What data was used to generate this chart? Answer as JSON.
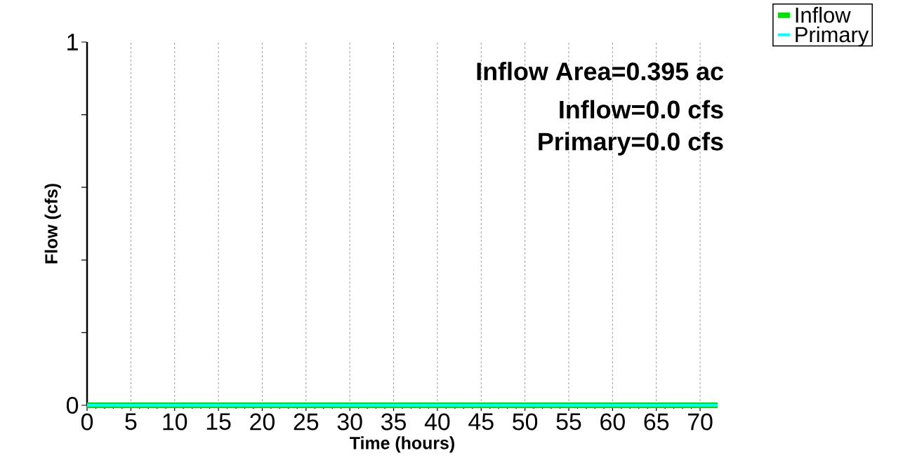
{
  "chart_data": {
    "type": "line",
    "xlabel": "Time  (hours)",
    "ylabel": "Flow  (cfs)",
    "x": [
      0,
      72
    ],
    "series": [
      {
        "name": "Inflow",
        "color": "#00e000",
        "values": [
          0,
          0
        ]
      },
      {
        "name": "Primary",
        "color": "#00ffff",
        "values": [
          0,
          0
        ]
      }
    ],
    "xlim": [
      0,
      72
    ],
    "xticks": [
      0,
      5,
      10,
      15,
      20,
      25,
      30,
      35,
      40,
      45,
      50,
      55,
      60,
      65,
      70
    ],
    "ylim": [
      0,
      1
    ],
    "yticks": [
      0,
      {
        "value": 0.2,
        "label": null
      },
      {
        "value": 0.4,
        "label": null
      },
      {
        "value": 0.6,
        "label": null
      },
      {
        "value": 0.8,
        "label": null
      },
      1
    ],
    "grid": "x",
    "legend": "top right",
    "annotations": [
      "Inflow Area=0.395 ac",
      "Inflow=0.0 cfs",
      "Primary=0.0 cfs"
    ]
  }
}
